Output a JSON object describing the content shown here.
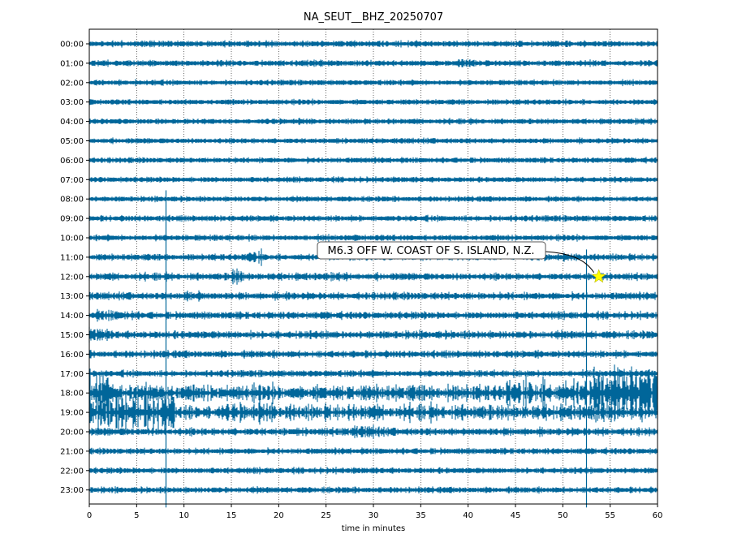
{
  "chart_data": {
    "type": "line",
    "title": "NA_SEUT__BHZ_20250707",
    "xlabel": "time in minutes",
    "ylabel": "",
    "xlim": [
      0,
      60
    ],
    "x_ticks": [
      0,
      5,
      10,
      15,
      20,
      25,
      30,
      35,
      40,
      45,
      50,
      55,
      60
    ],
    "grid": "vertical dotted lines at every 5 minutes",
    "trace_color": "#00669a",
    "rows": [
      "00:00",
      "01:00",
      "02:00",
      "03:00",
      "04:00",
      "05:00",
      "06:00",
      "07:00",
      "08:00",
      "09:00",
      "10:00",
      "11:00",
      "12:00",
      "13:00",
      "14:00",
      "15:00",
      "16:00",
      "17:00",
      "18:00",
      "19:00",
      "20:00",
      "21:00",
      "22:00",
      "23:00"
    ],
    "row_noise_amplitude": [
      0.12,
      0.12,
      0.1,
      0.1,
      0.1,
      0.1,
      0.1,
      0.1,
      0.1,
      0.12,
      0.12,
      0.14,
      0.16,
      0.16,
      0.16,
      0.18,
      0.16,
      0.14,
      0.45,
      0.4,
      0.18,
      0.12,
      0.12,
      0.12
    ],
    "bursts": [
      {
        "row": 0,
        "start": 5.5,
        "end": 6.5,
        "amp": 0.2
      },
      {
        "row": 0,
        "start": 49.5,
        "end": 50.5,
        "amp": 0.2
      },
      {
        "row": 1,
        "start": 39,
        "end": 41,
        "amp": 0.25
      },
      {
        "row": 11,
        "start": 16.5,
        "end": 18.5,
        "amp": 0.35
      },
      {
        "row": 12,
        "start": 15,
        "end": 16.2,
        "amp": 0.45
      },
      {
        "row": 13,
        "start": 10,
        "end": 12,
        "amp": 0.3
      },
      {
        "row": 13,
        "start": 20.8,
        "end": 21.2,
        "amp": 0.4
      },
      {
        "row": 14,
        "start": 0,
        "end": 5,
        "amp": 0.25
      },
      {
        "row": 15,
        "start": 0,
        "end": 2,
        "amp": 0.35
      },
      {
        "row": 18,
        "start": 0,
        "end": 2.5,
        "amp": 1.3
      },
      {
        "row": 18,
        "start": 4,
        "end": 8,
        "amp": 0.55
      },
      {
        "row": 18,
        "start": 44,
        "end": 52,
        "amp": 0.8
      },
      {
        "row": 18,
        "start": 52,
        "end": 60,
        "amp": 1.5
      },
      {
        "row": 19,
        "start": 0,
        "end": 9,
        "amp": 1.1
      },
      {
        "row": 19,
        "start": 9,
        "end": 22,
        "amp": 0.45
      },
      {
        "row": 20,
        "start": 27,
        "end": 31,
        "amp": 0.3
      }
    ],
    "spikes": [
      {
        "x": 8.1,
        "from_row": 7.55,
        "to_row": 23.9
      },
      {
        "x": 52.5,
        "from_row": 10.6,
        "to_row": 23.9
      }
    ],
    "annotation": {
      "label": "M6.3 OFF W. COAST OF S. ISLAND, N.Z.",
      "event_minute": 53.8,
      "event_row": 12,
      "marker": "star",
      "marker_color": "#ffff00"
    }
  }
}
